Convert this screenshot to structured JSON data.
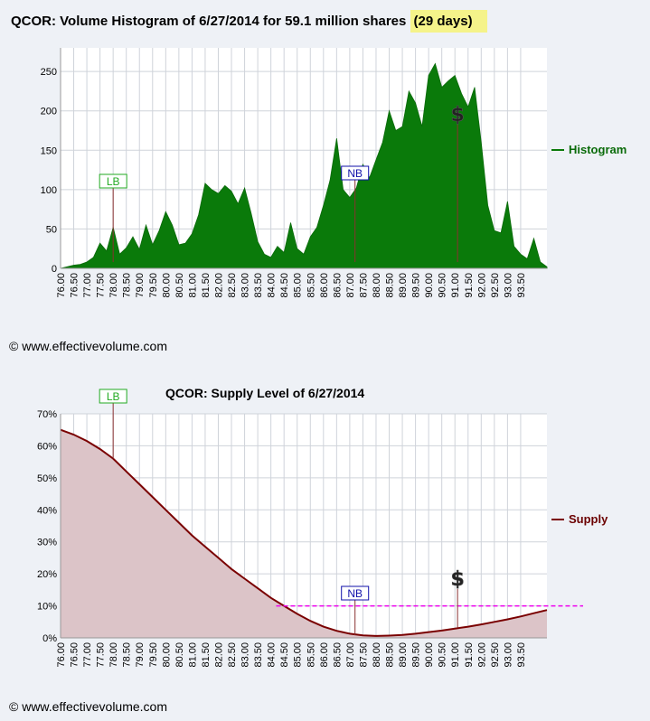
{
  "charts": {
    "histogram": {
      "title_main": "QCOR: Volume Histogram of 6/27/2014 for 59.1 million shares ",
      "title_days": "(29 days)",
      "legend": "Histogram",
      "color": "#0a7a0a",
      "markers": [
        {
          "label": "LB",
          "x": 78.0,
          "color": "#22aa22"
        },
        {
          "label": "NB",
          "x": 87.2,
          "color": "#1010aa"
        },
        {
          "label": "$",
          "x": 91.1,
          "color": "#222222"
        }
      ]
    },
    "supply": {
      "title": "QCOR: Supply Level of 6/27/2014",
      "legend": "Supply",
      "line_color": "#7a0000",
      "fill_color": "#dcc4c8",
      "threshold_color": "#ee00ee",
      "markers": [
        {
          "label": "LB",
          "x": 78.0,
          "color": "#22aa22"
        },
        {
          "label": "NB",
          "x": 87.2,
          "color": "#1010aa"
        },
        {
          "label": "$",
          "x": 91.1,
          "color": "#222222"
        }
      ]
    }
  },
  "copyright": "© www.effectivevolume.com",
  "chart_data": [
    {
      "type": "area",
      "title": "QCOR: Volume Histogram of 6/27/2014 for 59.1 million shares (29 days)",
      "legend": "right",
      "grid": true,
      "xlim": [
        76.0,
        94.5
      ],
      "ylim": [
        0,
        280
      ],
      "x_ticks": [
        76.0,
        76.5,
        77.0,
        77.5,
        78.0,
        78.5,
        79.0,
        79.5,
        80.0,
        80.5,
        81.0,
        81.5,
        82.0,
        82.5,
        83.0,
        83.5,
        84.0,
        84.5,
        85.0,
        85.5,
        86.0,
        86.5,
        87.0,
        87.5,
        88.0,
        88.5,
        89.0,
        89.5,
        90.0,
        90.5,
        91.0,
        91.5,
        92.0,
        92.5,
        93.0,
        93.5
      ],
      "x_tick_labels": [
        "76.00",
        "76.50",
        "77.00",
        "77.50",
        "78.00",
        "78.50",
        "79.00",
        "79.50",
        "80.00",
        "80.50",
        "81.00",
        "81.50",
        "82.00",
        "82.50",
        "83.00",
        "83.50",
        "84.00",
        "84.50",
        "85.00",
        "85.50",
        "86.00",
        "86.50",
        "87.00",
        "87.50",
        "88.00",
        "88.50",
        "89.00",
        "89.50",
        "90.00",
        "90.50",
        "91.00",
        "91.50",
        "92.00",
        "92.50",
        "93.00",
        "93.50"
      ],
      "y_ticks": [
        0,
        50,
        100,
        150,
        200,
        250
      ],
      "y_tick_labels": [
        "0",
        "50",
        "100",
        "150",
        "200",
        "250"
      ],
      "series": [
        {
          "name": "Histogram",
          "x": [
            76.0,
            76.25,
            76.5,
            76.75,
            77.0,
            77.25,
            77.5,
            77.75,
            78.0,
            78.25,
            78.5,
            78.75,
            79.0,
            79.25,
            79.5,
            79.75,
            80.0,
            80.25,
            80.5,
            80.75,
            81.0,
            81.25,
            81.5,
            81.75,
            82.0,
            82.25,
            82.5,
            82.75,
            83.0,
            83.25,
            83.5,
            83.75,
            84.0,
            84.25,
            84.5,
            84.75,
            85.0,
            85.25,
            85.5,
            85.75,
            86.0,
            86.25,
            86.5,
            86.75,
            87.0,
            87.25,
            87.5,
            87.75,
            88.0,
            88.25,
            88.5,
            88.75,
            89.0,
            89.25,
            89.5,
            89.75,
            90.0,
            90.25,
            90.5,
            90.75,
            91.0,
            91.25,
            91.5,
            91.75,
            92.0,
            92.25,
            92.5,
            92.75,
            93.0,
            93.25,
            93.5,
            93.75,
            94.0,
            94.25,
            94.5
          ],
          "values": [
            0,
            2,
            4,
            5,
            8,
            14,
            32,
            22,
            52,
            18,
            26,
            40,
            24,
            55,
            30,
            48,
            72,
            55,
            30,
            32,
            44,
            68,
            108,
            100,
            95,
            105,
            98,
            82,
            102,
            70,
            34,
            18,
            14,
            28,
            20,
            58,
            25,
            18,
            40,
            52,
            80,
            112,
            165,
            100,
            90,
            102,
            132,
            115,
            138,
            160,
            200,
            175,
            180,
            225,
            210,
            180,
            245,
            260,
            230,
            238,
            245,
            222,
            205,
            230,
            160,
            80,
            48,
            45,
            85,
            28,
            18,
            12,
            38,
            8,
            2
          ]
        }
      ]
    },
    {
      "type": "area",
      "title": "QCOR: Supply Level of 6/27/2014",
      "legend": "right",
      "grid": true,
      "xlim": [
        76.0,
        94.5
      ],
      "ylim": [
        0,
        70
      ],
      "x_ticks": [
        76.0,
        76.5,
        77.0,
        77.5,
        78.0,
        78.5,
        79.0,
        79.5,
        80.0,
        80.5,
        81.0,
        81.5,
        82.0,
        82.5,
        83.0,
        83.5,
        84.0,
        84.5,
        85.0,
        85.5,
        86.0,
        86.5,
        87.0,
        87.5,
        88.0,
        88.5,
        89.0,
        89.5,
        90.0,
        90.5,
        91.0,
        91.5,
        92.0,
        92.5,
        93.0,
        93.5
      ],
      "x_tick_labels": [
        "76.00",
        "76.50",
        "77.00",
        "77.50",
        "78.00",
        "78.50",
        "79.00",
        "79.50",
        "80.00",
        "80.50",
        "81.00",
        "81.50",
        "82.00",
        "82.50",
        "83.00",
        "83.50",
        "84.00",
        "84.50",
        "85.00",
        "85.50",
        "86.00",
        "86.50",
        "87.00",
        "87.50",
        "88.00",
        "88.50",
        "89.00",
        "89.50",
        "90.00",
        "90.50",
        "91.00",
        "91.50",
        "92.00",
        "92.50",
        "93.00",
        "93.50"
      ],
      "y_ticks": [
        0,
        10,
        20,
        30,
        40,
        50,
        60,
        70
      ],
      "y_tick_labels": [
        "0%",
        "10%",
        "20%",
        "30%",
        "40%",
        "50%",
        "60%",
        "70%"
      ],
      "threshold": 10,
      "series": [
        {
          "name": "Supply",
          "x": [
            76.0,
            76.5,
            77.0,
            77.5,
            78.0,
            78.5,
            79.0,
            79.5,
            80.0,
            80.5,
            81.0,
            81.5,
            82.0,
            82.5,
            83.0,
            83.5,
            84.0,
            84.5,
            85.0,
            85.5,
            86.0,
            86.5,
            87.0,
            87.5,
            88.0,
            88.5,
            89.0,
            89.5,
            90.0,
            90.5,
            91.0,
            91.5,
            92.0,
            92.5,
            93.0,
            93.5,
            94.0,
            94.5
          ],
          "values": [
            65,
            63.5,
            61.5,
            59,
            56,
            52,
            48,
            44,
            40,
            36,
            32,
            28.5,
            25,
            21.5,
            18.5,
            15.5,
            12.5,
            10,
            7.5,
            5.3,
            3.5,
            2.2,
            1.3,
            0.8,
            0.6,
            0.7,
            0.9,
            1.3,
            1.8,
            2.3,
            2.9,
            3.5,
            4.2,
            5.0,
            5.8,
            6.7,
            7.7,
            8.7
          ]
        }
      ]
    }
  ]
}
